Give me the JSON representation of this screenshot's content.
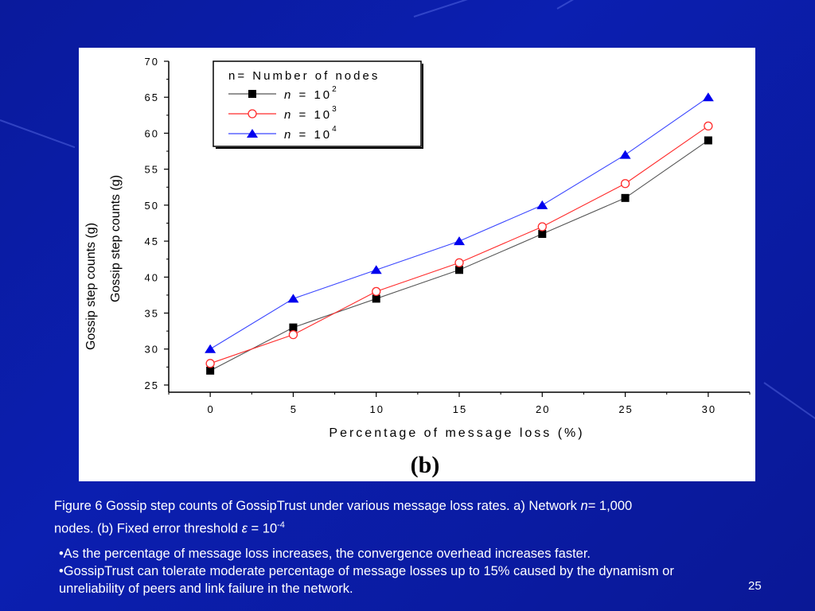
{
  "chart_data": {
    "type": "line",
    "xlabel": "Percentage of message loss (%)",
    "ylabel": "Gossip step counts (g)",
    "ylabel_duplicate": "Gossip step counts (g)",
    "panel_label": "(b)",
    "x": [
      0,
      5,
      10,
      15,
      20,
      25,
      30
    ],
    "xlim": [
      -2.5,
      32.5
    ],
    "ylim": [
      24,
      70
    ],
    "y_ticks": [
      25,
      30,
      35,
      40,
      45,
      50,
      55,
      60,
      65,
      70
    ],
    "x_ticks": [
      0,
      5,
      10,
      15,
      20,
      25,
      30
    ],
    "legend_title": "n= Number of nodes",
    "legend_placement": "top-left",
    "series": [
      {
        "name": "n = 10^2",
        "label_n": "n",
        "label_eq": "=",
        "label_base": "10",
        "label_exp": "2",
        "marker": "filled-square",
        "color": "#000000",
        "line_color": "#555555",
        "values": [
          27,
          33,
          37,
          41,
          46,
          51,
          59
        ]
      },
      {
        "name": "n = 10^3",
        "label_n": "n",
        "label_eq": "=",
        "label_base": "10",
        "label_exp": "3",
        "marker": "open-circle",
        "color": "#ff2a2a",
        "line_color": "#ff2a2a",
        "values": [
          28,
          32,
          38,
          42,
          47,
          53,
          61
        ]
      },
      {
        "name": "n = 10^4",
        "label_n": "n",
        "label_eq": "=",
        "label_base": "10",
        "label_exp": "4",
        "marker": "filled-triangle",
        "color": "#0000ee",
        "line_color": "#3a46ff",
        "values": [
          30,
          37,
          41,
          45,
          50,
          57,
          65
        ]
      }
    ]
  },
  "caption": {
    "line1_prefix": "Figure 6 Gossip step counts of GossipTrust under various message loss rates. a) Network ",
    "line1_var": "n",
    "line1_suffix": "= 1,000",
    "line2_prefix": "nodes. (b) Fixed error threshold ",
    "line2_var": "ε",
    "line2_mid": " = 10",
    "line2_exp": "-4"
  },
  "bullets": [
    "•As the percentage of message loss increases, the convergence overhead increases faster.",
    "•GossipTrust can tolerate moderate percentage of message losses up to 15% caused by the dynamism or unreliability of peers and link failure in the network."
  ],
  "page_number": "25"
}
